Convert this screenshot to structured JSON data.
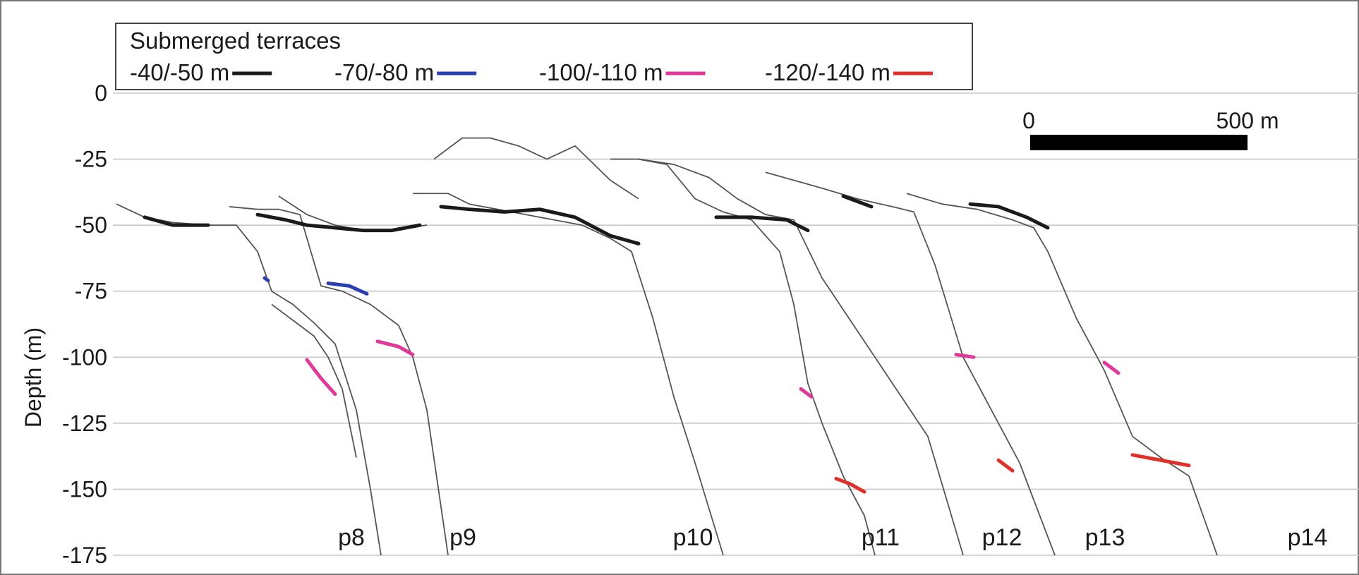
{
  "chart_data": {
    "type": "line",
    "title": "",
    "xlabel": "",
    "ylabel": "Depth (m)",
    "ylim": [
      -175,
      0
    ],
    "yticks": [
      "0",
      "-25",
      "-50",
      "-75",
      "-100",
      "-125",
      "-150",
      "-175"
    ],
    "ytick_values": [
      0,
      -25,
      -50,
      -75,
      -100,
      -125,
      -150,
      -175
    ],
    "grid": true,
    "legend": {
      "title": "Submerged terraces",
      "placement": "top-left",
      "entries": [
        {
          "label": "-40/-50 m",
          "color": "#1a1a1a"
        },
        {
          "label": "-70/-80 m",
          "color": "#2b3fb0"
        },
        {
          "label": "-100/-110 m",
          "color": "#e0399a"
        },
        {
          "label": "-120/-140 m",
          "color": "#e0302a"
        }
      ]
    },
    "scale_bar": {
      "start_label": "0",
      "end_label": "500 m"
    },
    "profile_labels": [
      "p8",
      "p9",
      "p10",
      "p11",
      "p12",
      "p13",
      "p14"
    ],
    "profile_color": "#555555",
    "profiles": [
      {
        "name": "p8",
        "x": [
          0,
          40,
          80,
          130,
          170,
          200,
          220,
          250,
          280,
          310,
          340,
          360,
          375
        ],
        "y": [
          -42,
          -47,
          -49,
          -50,
          -50,
          -60,
          -75,
          -80,
          -87,
          -95,
          -120,
          -150,
          -175
        ]
      },
      {
        "name": "p8b",
        "x": [
          220,
          250,
          280,
          300,
          320,
          340
        ],
        "y": [
          -80,
          -86,
          -92,
          -100,
          -112,
          -138
        ]
      },
      {
        "name": "p9",
        "x": [
          160,
          200,
          230,
          260,
          290,
          320,
          360,
          400,
          420,
          440,
          470
        ],
        "y": [
          -43,
          -44,
          -44,
          -46,
          -73,
          -75,
          -80,
          -88,
          -100,
          -120,
          -175
        ]
      },
      {
        "name": "p9b",
        "x": [
          230,
          270,
          310,
          350,
          380,
          410,
          440
        ],
        "y": [
          -39,
          -46,
          -50,
          -52,
          -52,
          -51,
          -50
        ]
      },
      {
        "name": "p10",
        "x": [
          420,
          470,
          500,
          540,
          580,
          620,
          660,
          700,
          730,
          760,
          790,
          820,
          860
        ],
        "y": [
          -38,
          -38,
          -42,
          -44,
          -46,
          -48,
          -50,
          -55,
          -60,
          -85,
          -115,
          -140,
          -175
        ]
      },
      {
        "name": "p10b",
        "x": [
          450,
          490,
          530,
          570,
          610,
          650,
          700,
          740
        ],
        "y": [
          -25,
          -17,
          -17,
          -20,
          -25,
          -20,
          -33,
          -40
        ]
      },
      {
        "name": "p11",
        "x": [
          700,
          740,
          780,
          820,
          860,
          900,
          940,
          960,
          980,
          1000,
          1030,
          1060,
          1075
        ],
        "y": [
          -25,
          -25,
          -27,
          -40,
          -45,
          -48,
          -60,
          -80,
          -110,
          -125,
          -145,
          -160,
          -175
        ]
      },
      {
        "name": "p12",
        "x": [
          740,
          790,
          840,
          880,
          920,
          960,
          1000,
          1050,
          1100,
          1150,
          1200
        ],
        "y": [
          -25,
          -27,
          -32,
          -40,
          -46,
          -48,
          -70,
          -90,
          -110,
          -130,
          -175
        ]
      },
      {
        "name": "p13",
        "x": [
          920,
          960,
          1000,
          1050,
          1100,
          1130,
          1160,
          1200,
          1240,
          1280,
          1330
        ],
        "y": [
          -30,
          -33,
          -36,
          -40,
          -43,
          -45,
          -65,
          -100,
          -120,
          -140,
          -175
        ]
      },
      {
        "name": "p14",
        "x": [
          1120,
          1170,
          1220,
          1270,
          1300,
          1320,
          1360,
          1400,
          1440,
          1480,
          1520,
          1560
        ],
        "y": [
          -38,
          -42,
          -44,
          -48,
          -51,
          -60,
          -85,
          -105,
          -130,
          -138,
          -145,
          -175
        ]
      }
    ],
    "terrace_segments": [
      {
        "series": "-40/-50 m",
        "color": "#1a1a1a",
        "x": [
          40,
          80,
          130
        ],
        "y": [
          -47,
          -50,
          -50
        ]
      },
      {
        "series": "-40/-50 m",
        "color": "#1a1a1a",
        "x": [
          200,
          240,
          270,
          310,
          350,
          390,
          430
        ],
        "y": [
          -46,
          -48,
          -50,
          -51,
          -52,
          -52,
          -50
        ]
      },
      {
        "series": "-40/-50 m",
        "color": "#1a1a1a",
        "x": [
          460,
          500,
          550,
          600,
          650,
          700,
          740
        ],
        "y": [
          -43,
          -44,
          -45,
          -44,
          -47,
          -54,
          -57
        ]
      },
      {
        "series": "-40/-50 m",
        "color": "#1a1a1a",
        "x": [
          850,
          900,
          950,
          980
        ],
        "y": [
          -47,
          -47,
          -48,
          -52
        ]
      },
      {
        "series": "-40/-50 m",
        "color": "#1a1a1a",
        "x": [
          1030,
          1070
        ],
        "y": [
          -39,
          -43
        ]
      },
      {
        "series": "-40/-50 m",
        "color": "#1a1a1a",
        "x": [
          1210,
          1250,
          1290,
          1320
        ],
        "y": [
          -42,
          -43,
          -47,
          -51
        ]
      },
      {
        "series": "-70/-80 m",
        "color": "#2b3fb0",
        "x": [
          210,
          215
        ],
        "y": [
          -70,
          -71
        ]
      },
      {
        "series": "-70/-80 m",
        "color": "#2b3fb0",
        "x": [
          300,
          330,
          355
        ],
        "y": [
          -72,
          -73,
          -76
        ]
      },
      {
        "series": "-100/-110 m",
        "color": "#e0399a",
        "x": [
          270,
          290,
          310
        ],
        "y": [
          -101,
          -108,
          -114
        ]
      },
      {
        "series": "-100/-110 m",
        "color": "#e0399a",
        "x": [
          370,
          400,
          420
        ],
        "y": [
          -94,
          -96,
          -99
        ]
      },
      {
        "series": "-100/-110 m",
        "color": "#e0399a",
        "x": [
          970,
          985
        ],
        "y": [
          -112,
          -115
        ]
      },
      {
        "series": "-100/-110 m",
        "color": "#e0399a",
        "x": [
          1190,
          1215
        ],
        "y": [
          -99,
          -100
        ]
      },
      {
        "series": "-100/-110 m",
        "color": "#e0399a",
        "x": [
          1400,
          1420
        ],
        "y": [
          -102,
          -106
        ]
      },
      {
        "series": "-120/-140 m",
        "color": "#e0302a",
        "x": [
          1020,
          1040,
          1060
        ],
        "y": [
          -146,
          -148,
          -151
        ]
      },
      {
        "series": "-120/-140 m",
        "color": "#e0302a",
        "x": [
          1250,
          1270
        ],
        "y": [
          -139,
          -143
        ]
      },
      {
        "series": "-120/-140 m",
        "color": "#e0302a",
        "x": [
          1440,
          1480,
          1520
        ],
        "y": [
          -137,
          -139,
          -141
        ]
      }
    ]
  }
}
